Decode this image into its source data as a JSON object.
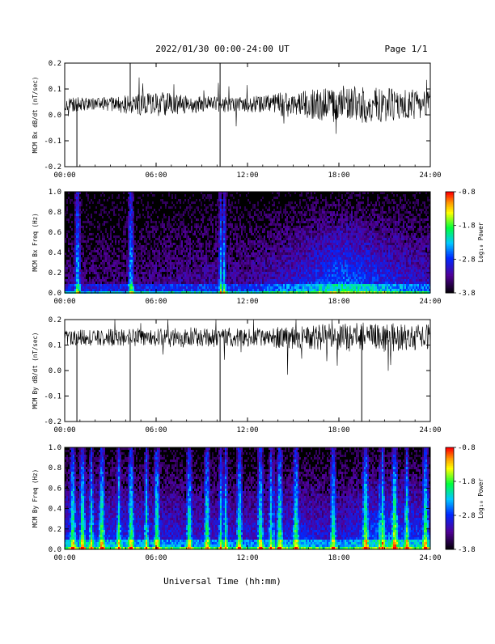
{
  "header": {
    "title": "2022/01/30  00:00-24:00 UT",
    "page": "Page 1/1"
  },
  "x_title": "Universal Time (hh:mm)",
  "colorbar": {
    "label": "Log₁₀ Power",
    "ticks": [
      "-0.8",
      "-1.8",
      "-2.8",
      "-3.8"
    ],
    "colors": [
      "#ff0000",
      "#ffa000",
      "#ffff00",
      "#00ff00",
      "#00c8ff",
      "#0040ff",
      "#6000c0",
      "#000000"
    ]
  },
  "chart_data": [
    {
      "type": "line",
      "ylabel": "MCM Bx dB/dt (nT/sec)",
      "xlim": [
        0,
        24
      ],
      "ylim": [
        -0.2,
        0.2
      ],
      "xticks": [
        "00:00",
        "06:00",
        "12:00",
        "18:00",
        "24:00"
      ],
      "yticks": [
        "0.2",
        "0.1",
        "0.0",
        "-0.1",
        "-0.2"
      ],
      "baseline": 0.04,
      "envelope": [
        {
          "t": 0,
          "amp": 0.03
        },
        {
          "t": 2,
          "amp": 0.025
        },
        {
          "t": 4,
          "amp": 0.035
        },
        {
          "t": 6,
          "amp": 0.05
        },
        {
          "t": 8,
          "amp": 0.035
        },
        {
          "t": 10,
          "amp": 0.03
        },
        {
          "t": 12,
          "amp": 0.03
        },
        {
          "t": 14,
          "amp": 0.045
        },
        {
          "t": 16,
          "amp": 0.06
        },
        {
          "t": 18,
          "amp": 0.075
        },
        {
          "t": 20,
          "amp": 0.07
        },
        {
          "t": 22,
          "amp": 0.06
        },
        {
          "t": 24,
          "amp": 0.055
        }
      ],
      "spikes": [
        {
          "t": 0.8,
          "from": -0.2,
          "to": 0.04
        },
        {
          "t": 4.3,
          "from": 0.04,
          "to": 0.2
        },
        {
          "t": 10.2,
          "from": -0.2,
          "to": 0.2
        }
      ]
    },
    {
      "type": "heatmap",
      "ylabel": "MCM Bx Freq (Hz)",
      "xlim": [
        0,
        24
      ],
      "ylim": [
        0,
        1.0
      ],
      "xticks": [
        "00:00",
        "06:00",
        "12:00",
        "18:00",
        "24:00"
      ],
      "yticks": [
        "1.0",
        "0.8",
        "0.6",
        "0.4",
        "0.2",
        "0.0"
      ],
      "zlim": [
        -3.8,
        -0.8
      ],
      "activity": [
        {
          "t": 0,
          "level": 0.15
        },
        {
          "t": 4,
          "level": 0.15
        },
        {
          "t": 8,
          "level": 0.2
        },
        {
          "t": 12,
          "level": 0.2
        },
        {
          "t": 15,
          "level": 0.3
        },
        {
          "t": 18,
          "level": 0.45
        },
        {
          "t": 21,
          "level": 0.35
        },
        {
          "t": 24,
          "level": 0.25
        }
      ],
      "bright_columns": [
        0.8,
        4.3,
        10.2,
        10.4
      ]
    },
    {
      "type": "line",
      "ylabel": "MCM By dB/dt (nT/sec)",
      "xlim": [
        0,
        24
      ],
      "ylim": [
        -0.2,
        0.2
      ],
      "xticks": [
        "00:00",
        "06:00",
        "12:00",
        "18:00",
        "24:00"
      ],
      "yticks": [
        "0.2",
        "0.1",
        "0.0",
        "-0.1",
        "-0.2"
      ],
      "baseline": 0.13,
      "envelope": [
        {
          "t": 0,
          "amp": 0.03
        },
        {
          "t": 4,
          "amp": 0.035
        },
        {
          "t": 8,
          "amp": 0.04
        },
        {
          "t": 12,
          "amp": 0.035
        },
        {
          "t": 16,
          "amp": 0.05
        },
        {
          "t": 18,
          "amp": 0.055
        },
        {
          "t": 20,
          "amp": 0.06
        },
        {
          "t": 24,
          "amp": 0.05
        }
      ],
      "spikes": [
        {
          "t": 0.8,
          "from": -0.2,
          "to": 0.13
        },
        {
          "t": 4.3,
          "from": -0.2,
          "to": 0.13
        },
        {
          "t": 10.2,
          "from": -0.2,
          "to": 0.13
        },
        {
          "t": 19.5,
          "from": -0.2,
          "to": 0.13
        }
      ]
    },
    {
      "type": "heatmap",
      "ylabel": "MCM By Freq (Hz)",
      "xlim": [
        0,
        24
      ],
      "ylim": [
        0,
        1.0
      ],
      "xticks": [
        "00:00",
        "06:00",
        "12:00",
        "18:00",
        "24:00"
      ],
      "yticks": [
        "1.0",
        "0.8",
        "0.6",
        "0.4",
        "0.2",
        "0.0"
      ],
      "zlim": [
        -3.8,
        -0.8
      ],
      "activity": [
        {
          "t": 0,
          "level": 0.35
        },
        {
          "t": 4,
          "level": 0.35
        },
        {
          "t": 8,
          "level": 0.3
        },
        {
          "t": 12,
          "level": 0.3
        },
        {
          "t": 15,
          "level": 0.35
        },
        {
          "t": 18,
          "level": 0.3
        },
        {
          "t": 21,
          "level": 0.45
        },
        {
          "t": 24,
          "level": 0.35
        }
      ],
      "bright_columns": [
        0.5,
        1.1,
        1.7,
        2.4,
        3.5,
        4.3,
        5.3,
        6.0,
        8.1,
        9.3,
        10.2,
        10.5,
        11.4,
        12.8,
        13.5,
        14.1,
        15.1,
        17.6,
        19.7,
        20.8,
        21.6,
        22.4,
        23.6
      ]
    }
  ]
}
